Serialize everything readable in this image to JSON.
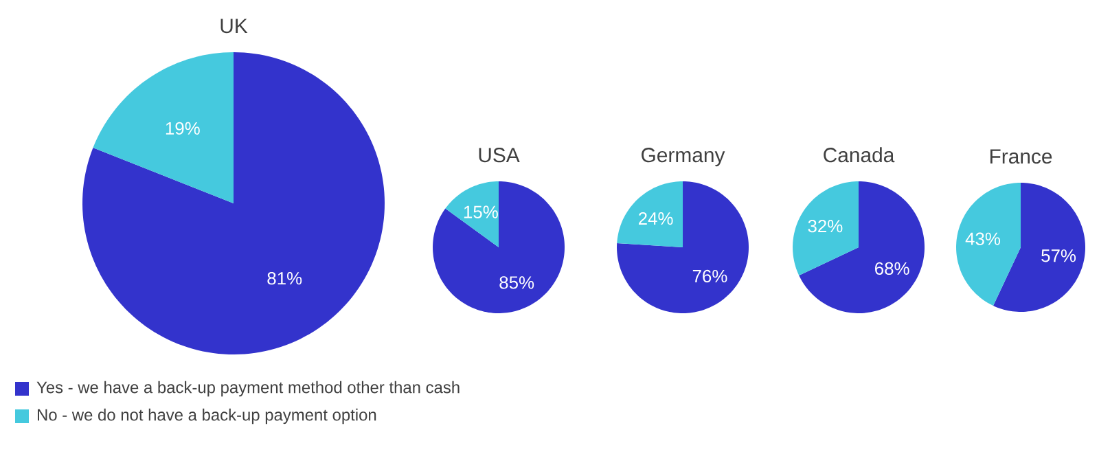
{
  "chart_data": [
    {
      "type": "pie",
      "title": "UK",
      "categories": [
        "Yes - we have a back-up payment method other than cash",
        "No - we do not have a back-up payment option"
      ],
      "values": [
        81,
        19
      ],
      "value_labels": [
        "81%",
        "19%"
      ],
      "colors": [
        "#3333cc",
        "#45c9de"
      ],
      "legend": "bottom"
    },
    {
      "type": "pie",
      "title": "USA",
      "categories": [
        null,
        null
      ],
      "values": [
        85,
        15
      ],
      "value_labels": [
        "85%",
        "15%"
      ],
      "colors": [
        "#3333cc",
        "#45c9de"
      ]
    },
    {
      "type": "pie",
      "title": "Germany",
      "categories": [
        null,
        null
      ],
      "values": [
        76,
        24
      ],
      "value_labels": [
        "76%",
        "24%"
      ],
      "colors": [
        "#3333cc",
        "#45c9de"
      ]
    },
    {
      "type": "pie",
      "title": "Canada",
      "categories": [
        null,
        null
      ],
      "values": [
        68,
        32
      ],
      "value_labels": [
        "68%",
        "32%"
      ],
      "colors": [
        "#3333cc",
        "#45c9de"
      ]
    },
    {
      "type": "pie",
      "title": "France",
      "categories": [
        null,
        null
      ],
      "values": [
        57,
        43
      ],
      "value_labels": [
        "57%",
        "43%"
      ],
      "colors": [
        "#3333cc",
        "#45c9de"
      ]
    }
  ]
}
